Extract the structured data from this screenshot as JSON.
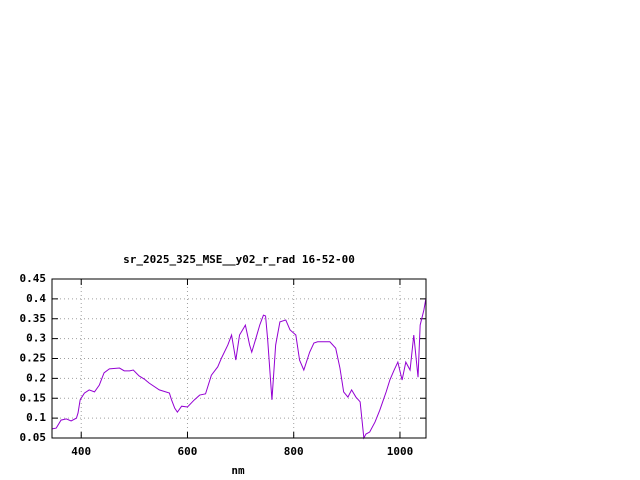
{
  "chart_data": {
    "type": "line",
    "title": "sr_2025_325_MSE__y02_r_rad 16-52-00",
    "xlabel": "nm",
    "x": [
      345,
      353,
      362,
      372,
      381,
      391,
      394,
      398,
      406,
      415,
      425,
      434,
      443,
      453,
      472,
      481,
      491,
      498,
      509,
      519,
      528,
      547,
      566,
      570,
      576,
      581,
      589,
      600,
      613,
      623,
      634,
      645,
      657,
      664,
      676,
      683,
      691,
      698,
      706,
      709,
      717,
      721,
      728,
      736,
      743,
      747,
      751,
      759,
      766,
      774,
      785,
      793,
      804,
      811,
      819,
      830,
      838,
      845,
      853,
      868,
      879,
      887,
      894,
      902,
      909,
      917,
      925,
      932,
      936,
      943,
      953,
      962,
      974,
      981,
      989,
      996,
      1004,
      1011,
      1019,
      1026,
      1034,
      1038,
      1045,
      1049
    ],
    "series": [
      {
        "name": "y02_r_rad",
        "color": "#9400d3",
        "values": [
          0.073,
          0.075,
          0.095,
          0.098,
          0.093,
          0.1,
          0.113,
          0.146,
          0.163,
          0.171,
          0.166,
          0.183,
          0.214,
          0.224,
          0.226,
          0.219,
          0.219,
          0.221,
          0.206,
          0.198,
          0.188,
          0.171,
          0.163,
          0.146,
          0.125,
          0.115,
          0.13,
          0.128,
          0.146,
          0.158,
          0.161,
          0.208,
          0.229,
          0.251,
          0.284,
          0.309,
          0.246,
          0.309,
          0.327,
          0.334,
          0.284,
          0.266,
          0.297,
          0.334,
          0.359,
          0.357,
          0.297,
          0.146,
          0.284,
          0.342,
          0.347,
          0.322,
          0.309,
          0.246,
          0.221,
          0.266,
          0.289,
          0.292,
          0.292,
          0.292,
          0.276,
          0.226,
          0.166,
          0.153,
          0.171,
          0.153,
          0.141,
          0.05,
          0.06,
          0.065,
          0.09,
          0.12,
          0.166,
          0.196,
          0.221,
          0.241,
          0.196,
          0.241,
          0.221,
          0.309,
          0.203,
          0.334,
          0.372,
          0.402
        ]
      }
    ],
    "xlim": [
      345,
      1049
    ],
    "xticks": [
      400,
      600,
      800,
      1000
    ],
    "ylim": [
      0.05,
      0.45
    ],
    "yticks": [
      0.05,
      0.1,
      0.15,
      0.2,
      0.25,
      0.3,
      0.35,
      0.4,
      0.45
    ],
    "grid": true
  }
}
